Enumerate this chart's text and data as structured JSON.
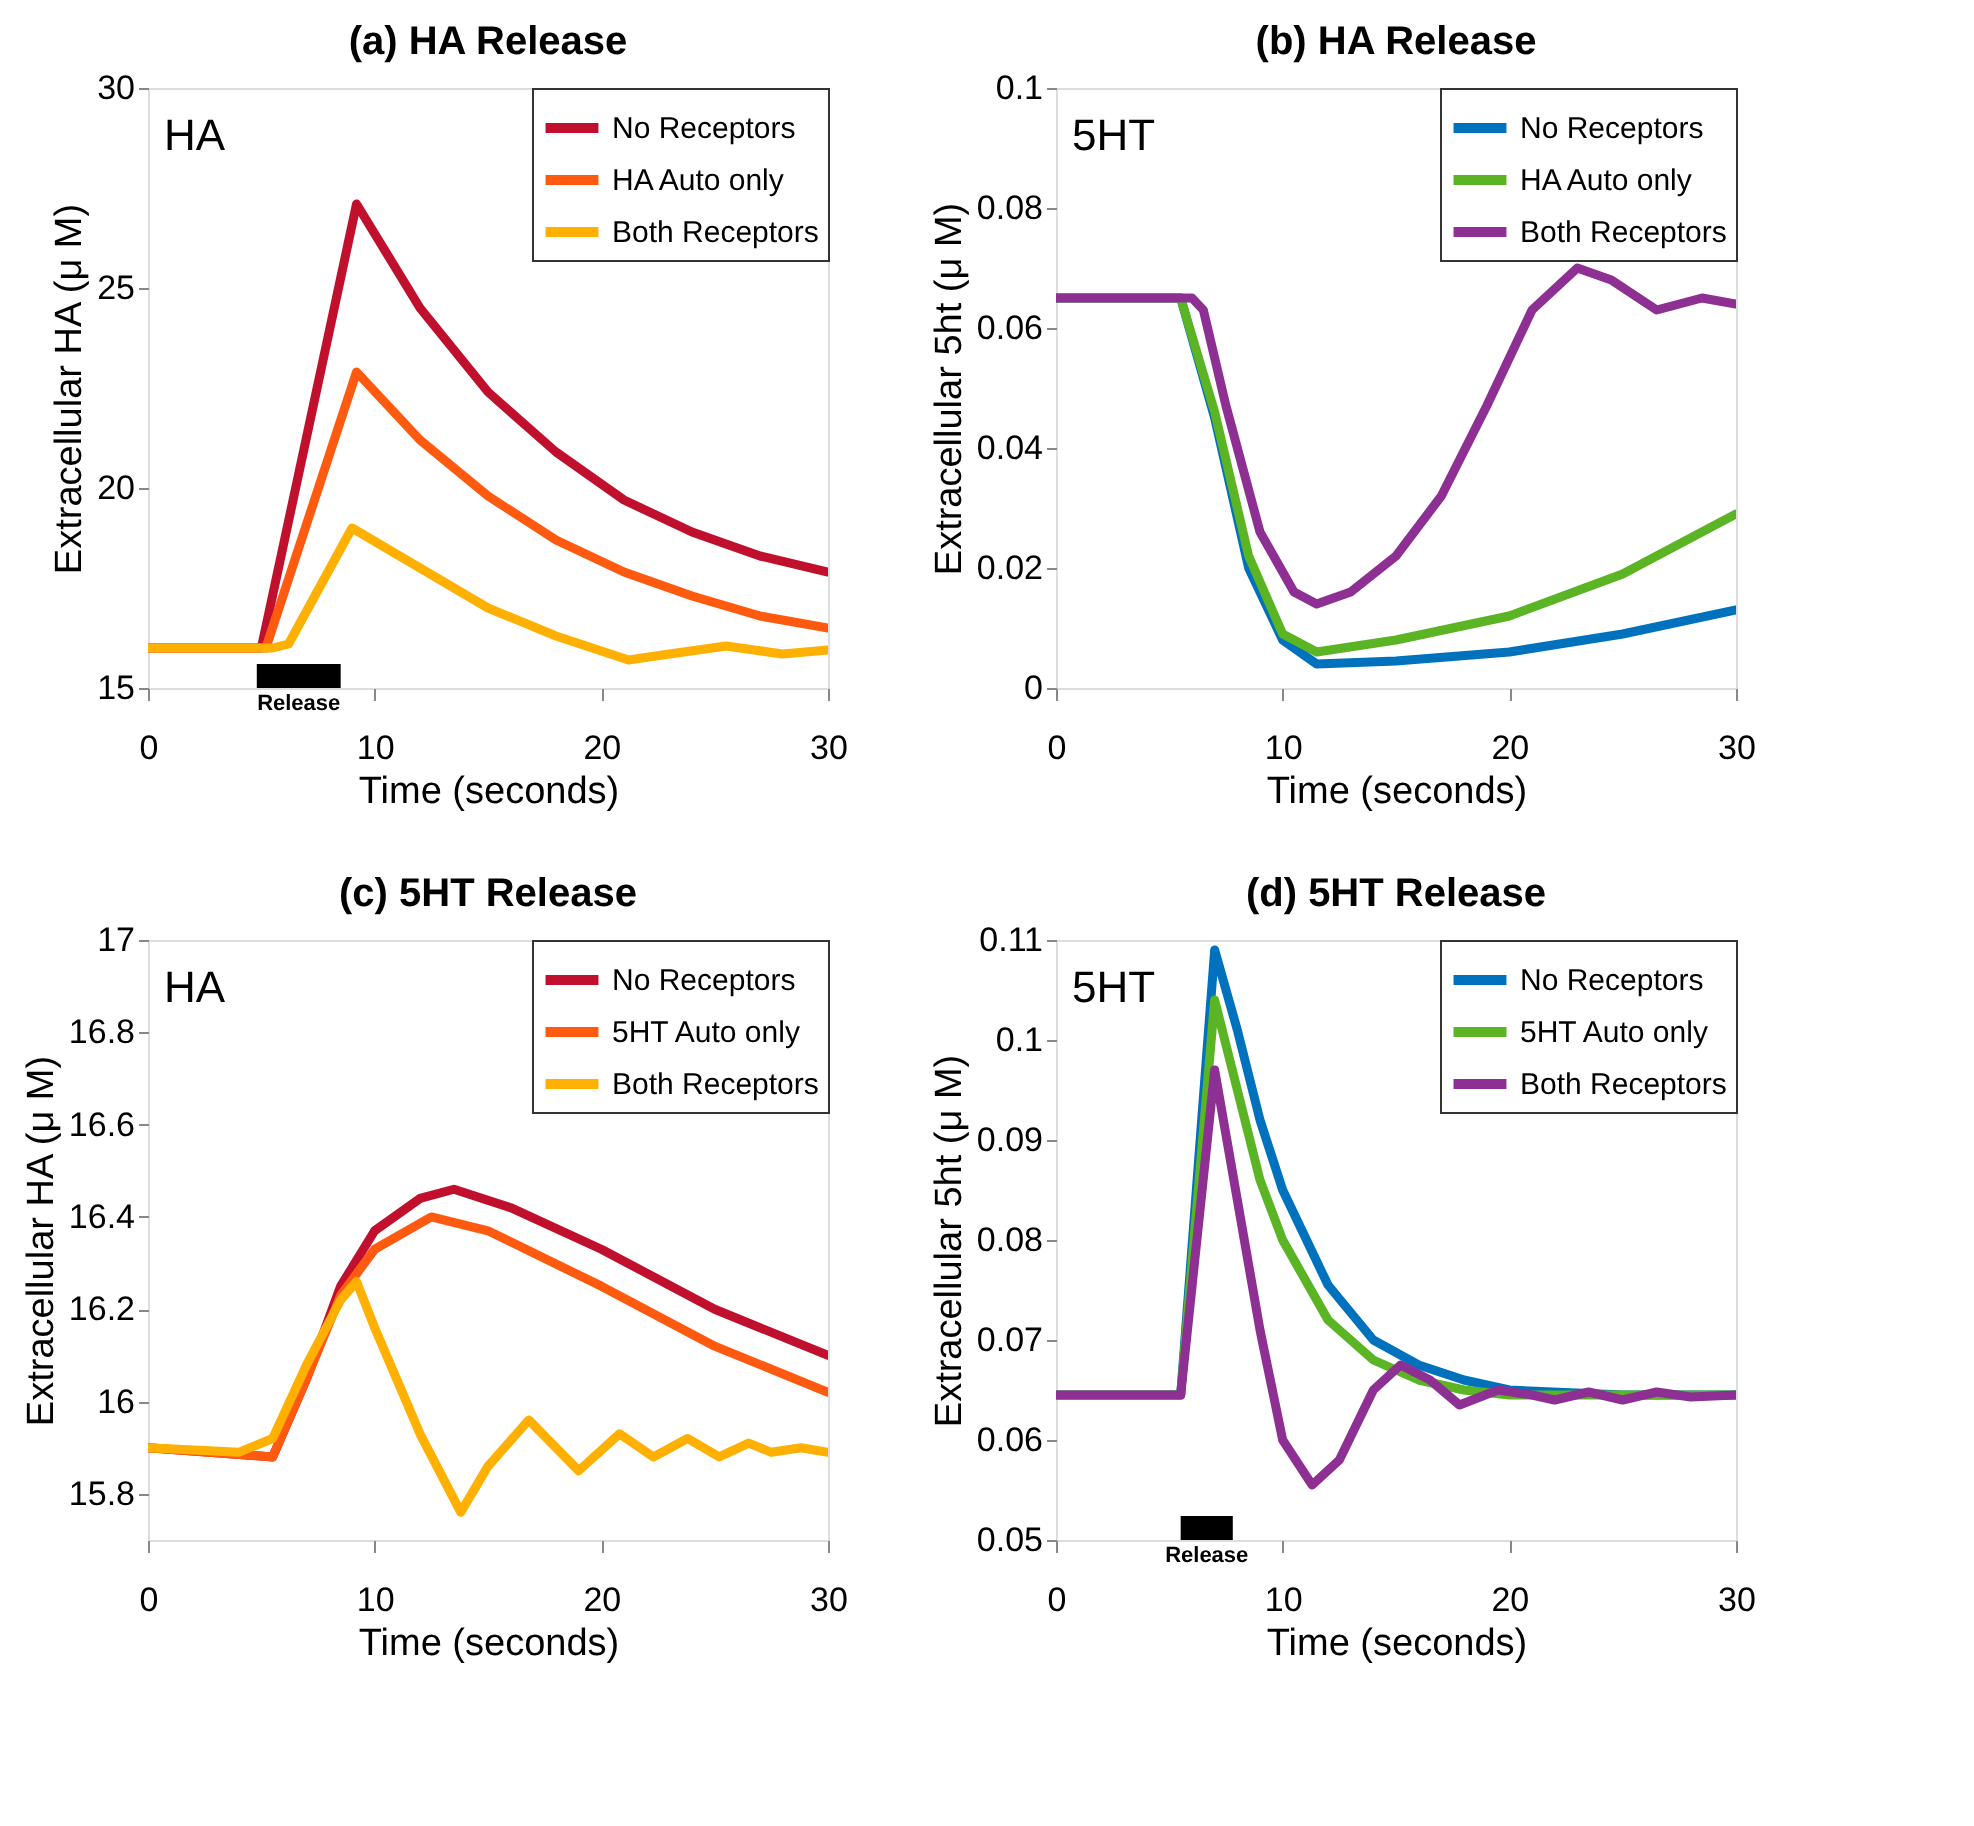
{
  "chart_data": [
    {
      "type": "line",
      "title": "(a) HA Release",
      "xlabel": "Time (seconds)",
      "ylabel": "Extracellular HA (μ M)",
      "annotations": [
        "HA"
      ],
      "legend": "top right",
      "xlim": [
        0,
        30
      ],
      "xticks": [
        0,
        10,
        20,
        30
      ],
      "ylim": [
        15,
        30
      ],
      "yticks": [
        15,
        20,
        25,
        30
      ],
      "line_style": "solid",
      "bands": [
        {
          "axis": "x",
          "from": 4.8,
          "to": 8.5,
          "label": "Release",
          "color": "#000000"
        }
      ],
      "series": [
        {
          "name": "No Receptors",
          "color": "#c0102e",
          "x": [
            0,
            5,
            9.2,
            12,
            15,
            18,
            21,
            24,
            27,
            30
          ],
          "values": [
            16,
            16,
            27.1,
            24.5,
            22.4,
            20.9,
            19.7,
            18.9,
            18.3,
            17.9
          ]
        },
        {
          "name": "HA Auto only",
          "color": "#ff5a10",
          "x": [
            0,
            5.2,
            9.2,
            12,
            15,
            18,
            21,
            24,
            27,
            30
          ],
          "values": [
            16,
            16,
            22.9,
            21.2,
            19.8,
            18.7,
            17.9,
            17.3,
            16.8,
            16.5
          ]
        },
        {
          "name": "Both Receptors",
          "color": "#ffb000",
          "x": [
            0,
            5.5,
            6.2,
            9,
            12,
            15,
            18,
            21.2,
            23,
            25.5,
            28,
            30
          ],
          "values": [
            16,
            16,
            16.1,
            19,
            18,
            17,
            16.3,
            15.7,
            15.85,
            16.05,
            15.85,
            15.95
          ]
        }
      ]
    },
    {
      "type": "line",
      "title": "(b) HA Release",
      "xlabel": "Time (seconds)",
      "ylabel": "Extracellular 5ht (μ M)",
      "annotations": [
        "5HT"
      ],
      "legend": "top right",
      "xlim": [
        0,
        30
      ],
      "xticks": [
        0,
        10,
        20,
        30
      ],
      "ylim": [
        0,
        0.1
      ],
      "yticks": [
        0,
        0.02,
        0.04,
        0.06,
        0.08,
        0.1
      ],
      "line_style": "solid",
      "series": [
        {
          "name": "No Receptors",
          "color": "#0072bd",
          "x": [
            0,
            5.5,
            7,
            8.5,
            10,
            11.5,
            15,
            20,
            25,
            30
          ],
          "values": [
            0.065,
            0.065,
            0.045,
            0.02,
            0.008,
            0.004,
            0.0045,
            0.006,
            0.009,
            0.013
          ]
        },
        {
          "name": "HA Auto only",
          "color": "#5ab424",
          "x": [
            0,
            5.5,
            7,
            8.5,
            10,
            11.5,
            15,
            20,
            25,
            30
          ],
          "values": [
            0.065,
            0.065,
            0.046,
            0.022,
            0.009,
            0.006,
            0.008,
            0.012,
            0.019,
            0.029
          ]
        },
        {
          "name": "Both Receptors",
          "color": "#8e2f94",
          "x": [
            0,
            6,
            6.5,
            7.5,
            9,
            10.5,
            11.5,
            13,
            15,
            17,
            19,
            21,
            23,
            24.5,
            26.5,
            28.5,
            30
          ],
          "values": [
            0.065,
            0.065,
            0.063,
            0.047,
            0.026,
            0.016,
            0.014,
            0.016,
            0.022,
            0.032,
            0.047,
            0.063,
            0.07,
            0.068,
            0.063,
            0.065,
            0.064
          ]
        }
      ]
    },
    {
      "type": "line",
      "title": "(c) 5HT Release",
      "xlabel": "Time (seconds)",
      "ylabel": "Extracellular HA (μ M)",
      "annotations": [
        "HA"
      ],
      "legend": "top right",
      "xlim": [
        0,
        30
      ],
      "xticks": [
        0,
        10,
        20,
        30
      ],
      "ylim": [
        15.7,
        17
      ],
      "yticks": [
        15.8,
        16,
        16.2,
        16.4,
        16.6,
        16.8,
        17
      ],
      "line_style": "solid",
      "series": [
        {
          "name": "No Receptors",
          "color": "#c0102e",
          "x": [
            0,
            5.5,
            7,
            8.5,
            10,
            12,
            13.5,
            16,
            20,
            25,
            30
          ],
          "values": [
            15.9,
            15.88,
            16.05,
            16.25,
            16.37,
            16.44,
            16.46,
            16.42,
            16.33,
            16.2,
            16.1
          ]
        },
        {
          "name": "5HT Auto only",
          "color": "#ff5a10",
          "x": [
            0,
            5.5,
            7,
            8.5,
            10,
            12.5,
            15,
            20,
            25,
            30
          ],
          "values": [
            15.9,
            15.88,
            16.05,
            16.23,
            16.33,
            16.4,
            16.37,
            16.25,
            16.12,
            16.02
          ]
        },
        {
          "name": "Both Receptors",
          "color": "#ffb000",
          "x": [
            0,
            4,
            5.5,
            7,
            8.5,
            9.2,
            10,
            12,
            13.8,
            15,
            16.8,
            19,
            20.8,
            22.3,
            23.8,
            25.2,
            26.5,
            27.5,
            28.8,
            30
          ],
          "values": [
            15.9,
            15.89,
            15.92,
            16.08,
            16.22,
            16.26,
            16.16,
            15.93,
            15.76,
            15.86,
            15.96,
            15.85,
            15.93,
            15.88,
            15.92,
            15.88,
            15.91,
            15.89,
            15.9,
            15.89
          ]
        }
      ]
    },
    {
      "type": "line",
      "title": "(d) 5HT Release",
      "xlabel": "Time (seconds)",
      "ylabel": "Extracellular 5ht (μ M)",
      "annotations": [
        "5HT"
      ],
      "legend": "top right",
      "xlim": [
        0,
        30
      ],
      "xticks": [
        0,
        10,
        20,
        30
      ],
      "ylim": [
        0.05,
        0.11
      ],
      "yticks": [
        0.05,
        0.06,
        0.07,
        0.08,
        0.09,
        0.1,
        0.11
      ],
      "line_style": "solid",
      "bands": [
        {
          "axis": "x",
          "from": 5.5,
          "to": 7.8,
          "label": "Release",
          "color": "#000000"
        }
      ],
      "series": [
        {
          "name": "No Receptors",
          "color": "#0072bd",
          "x": [
            0,
            5.5,
            7,
            8,
            9,
            10,
            12,
            14,
            16,
            18,
            20,
            25,
            30
          ],
          "values": [
            0.0645,
            0.0645,
            0.109,
            0.101,
            0.092,
            0.085,
            0.0755,
            0.07,
            0.0675,
            0.066,
            0.065,
            0.0645,
            0.0645
          ]
        },
        {
          "name": "5HT Auto only",
          "color": "#5ab424",
          "x": [
            0,
            5.5,
            7,
            8,
            9,
            10,
            12,
            14,
            16,
            18,
            20,
            30
          ],
          "values": [
            0.0645,
            0.0645,
            0.104,
            0.095,
            0.086,
            0.08,
            0.072,
            0.068,
            0.066,
            0.065,
            0.0645,
            0.0645
          ]
        },
        {
          "name": "Both Receptors",
          "color": "#8e2f94",
          "x": [
            0,
            5.5,
            7,
            8,
            9,
            10,
            11.3,
            12.5,
            14,
            15.2,
            16.5,
            17.8,
            19.5,
            21,
            22,
            23.5,
            25,
            26.5,
            28,
            30
          ],
          "values": [
            0.0645,
            0.0645,
            0.097,
            0.084,
            0.071,
            0.06,
            0.0555,
            0.058,
            0.065,
            0.0675,
            0.066,
            0.0635,
            0.065,
            0.0645,
            0.064,
            0.0648,
            0.064,
            0.0648,
            0.0643,
            0.0645
          ]
        }
      ]
    }
  ]
}
